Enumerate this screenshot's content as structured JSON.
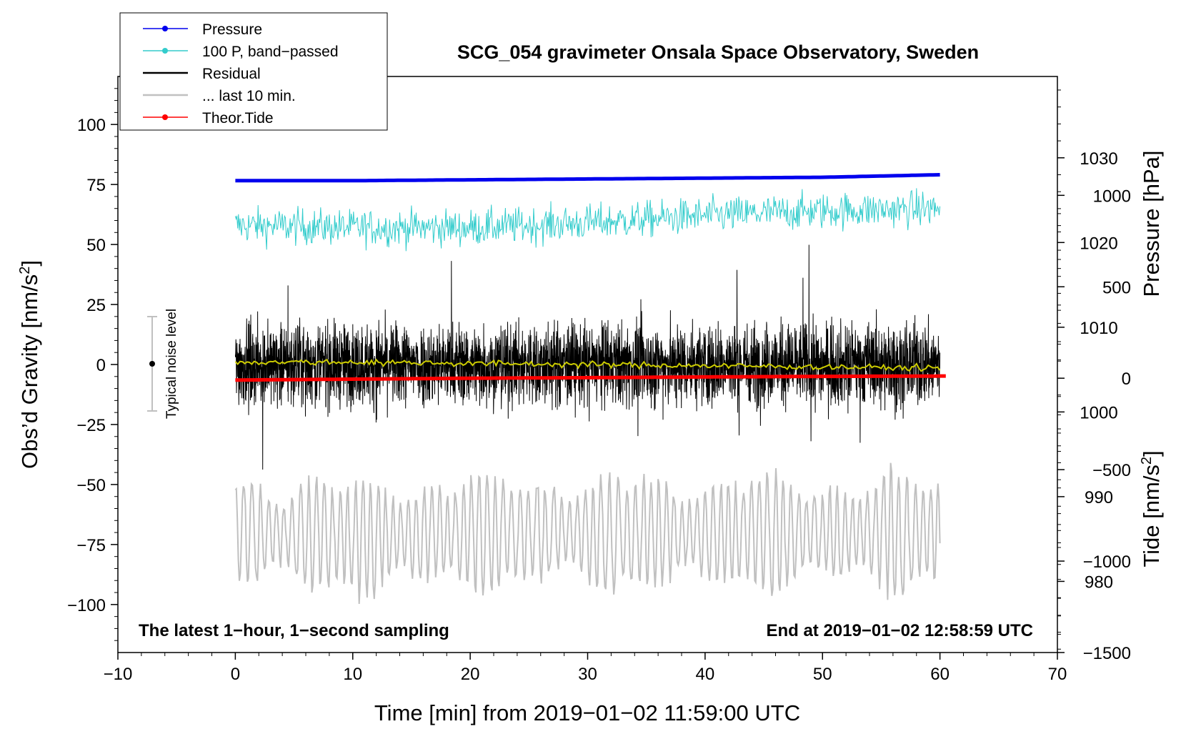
{
  "chart_data": {
    "type": "line",
    "title": "SCG_054 gravimeter Onsala Space Observatory, Sweden",
    "xlabel": "Time [min] from 2019−01−02 11:59:00 UTC",
    "ylabel_left": "Obs’d Gravity [nm/s",
    "ylabel_left_sup": "2",
    "ylabel_left_end": "]",
    "ylabel_right_pressure": "Pressure [hPa]",
    "ylabel_right_tide": "Tide [nm/s",
    "ylabel_right_tide_sup": "2",
    "ylabel_right_tide_end": "]",
    "xlim": [
      -10,
      70
    ],
    "ylim_left": [
      -120,
      120
    ],
    "pressure_lim": [
      971.6,
      1039.6
    ],
    "tide_lim": [
      -1500,
      1650
    ],
    "x_ticks": [
      -10,
      0,
      10,
      20,
      30,
      40,
      50,
      60,
      70
    ],
    "x_tick_labels": [
      "−10",
      "0",
      "10",
      "20",
      "30",
      "40",
      "50",
      "60",
      "70"
    ],
    "y_left_ticks": [
      100,
      75,
      50,
      25,
      0,
      -25,
      -50,
      -75,
      -100
    ],
    "y_left_tick_labels": [
      "100",
      "75",
      "50",
      "25",
      "0",
      "−25",
      "−50",
      "−75",
      "−100"
    ],
    "pressure_ticks": [
      1030,
      1020,
      1010,
      1000,
      990,
      980
    ],
    "pressure_tick_labels": [
      "1030",
      "1020",
      "1010",
      "1000",
      "990",
      "980"
    ],
    "tide_ticks": [
      1000,
      500,
      0,
      -500,
      -1000,
      -1500
    ],
    "tide_tick_labels": [
      "1000",
      "500",
      "0",
      "−500",
      "−1000",
      "−1500"
    ],
    "annotation_left": "The latest 1−hour, 1−second sampling",
    "annotation_right": "End at 2019−01−02 12:58:59 UTC",
    "noise_label": "Typical noise level",
    "noise_bar": {
      "x": -7,
      "center": 0,
      "half_range": 20
    },
    "legend": [
      {
        "label": "Pressure",
        "color": "#0000ee",
        "marker": true
      },
      {
        "label": "100 P, band−passed",
        "color": "#33cccc",
        "marker": true
      },
      {
        "label": "Residual",
        "color": "#000000",
        "marker": false
      },
      {
        "label": "... last 10 min.",
        "color": "#c0c0c0",
        "marker": false
      },
      {
        "label": "Theor.Tide",
        "color": "#ff0000",
        "marker": true
      }
    ],
    "series": [
      {
        "name": "Pressure",
        "axis": "pressure",
        "color": "#0000ee",
        "x": [
          0,
          10,
          20,
          30,
          40,
          50,
          60
        ],
        "values": [
          1027.3,
          1027.3,
          1027.4,
          1027.5,
          1027.6,
          1027.7,
          1028.0
        ]
      },
      {
        "name": "100 P, band−passed",
        "axis": "left",
        "color": "#33cccc",
        "x": [
          0,
          10,
          20,
          30,
          40,
          50,
          60
        ],
        "values": [
          58,
          57,
          57,
          59,
          62,
          64,
          65
        ],
        "amplitude": 6
      },
      {
        "name": "Residual",
        "axis": "left",
        "color": "#000000",
        "x": [
          0,
          10,
          20,
          30,
          40,
          50,
          60
        ],
        "values": [
          0,
          0,
          0,
          0,
          0,
          0,
          0
        ],
        "amplitude": 22
      },
      {
        "name": "Residual smoothed",
        "axis": "left",
        "color": "#cccc00",
        "x": [
          0,
          10,
          20,
          30,
          40,
          50,
          60
        ],
        "values": [
          1,
          1,
          0.5,
          0,
          -0.5,
          -1,
          -1.5
        ]
      },
      {
        "name": "... last 10 min.",
        "axis": "left",
        "color": "#c0c0c0",
        "x": [
          0,
          10,
          20,
          30,
          40,
          50,
          60
        ],
        "values": [
          -70,
          -72,
          -70,
          -70,
          -70,
          -70,
          -70
        ],
        "amplitude": 18
      },
      {
        "name": "Theor.Tide",
        "axis": "tide",
        "color": "#ff0000",
        "x": [
          0,
          10,
          20,
          30,
          40,
          50,
          60.5
        ],
        "values": [
          -10,
          -5,
          0,
          3,
          7,
          10,
          12
        ]
      }
    ]
  }
}
